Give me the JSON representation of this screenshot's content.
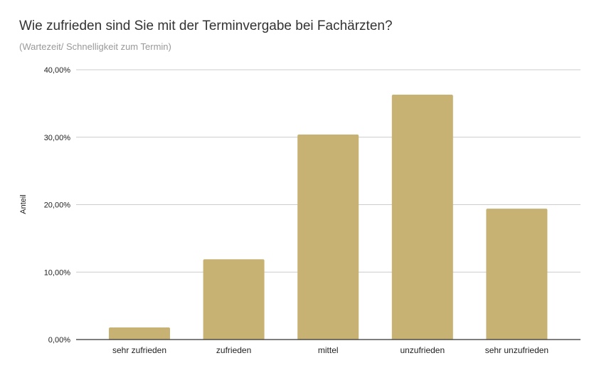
{
  "chart_data": {
    "type": "bar",
    "title": "Wie zufrieden sind Sie mit der Terminvergabe bei Fachärzten?",
    "subtitle": "(Wartezeit/ Schnelligkeit zum Termin)",
    "xlabel": "",
    "ylabel": "Anteil",
    "categories": [
      "sehr zufrieden",
      "zufrieden",
      "mittel",
      "unzufrieden",
      "sehr unzufrieden"
    ],
    "values": [
      1.8,
      11.9,
      30.4,
      36.3,
      19.4
    ],
    "ylim": [
      0,
      40
    ],
    "yticks": [
      0,
      10,
      20,
      30,
      40
    ],
    "ytick_labels": [
      "0,00%",
      "10,00%",
      "20,00%",
      "30,00%",
      "40,00%"
    ],
    "grid": true,
    "color": "#c8b273"
  }
}
